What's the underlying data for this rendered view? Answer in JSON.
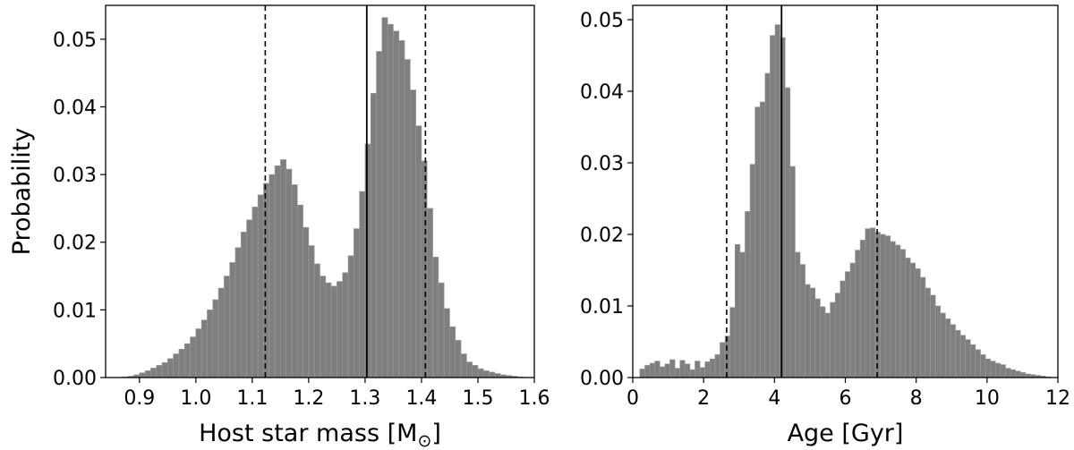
{
  "chart_data": [
    {
      "type": "bar",
      "id": "mass",
      "title": "",
      "xlabel_prefix": "Host star mass [M",
      "xlabel_sub": "⊙",
      "xlabel_suffix": "]",
      "ylabel": "Probability",
      "xlim": [
        0.84,
        1.6
      ],
      "ylim": [
        0,
        0.055
      ],
      "bin_start": 0.85,
      "bin_width": 0.01,
      "xticks": [
        0.9,
        1.0,
        1.1,
        1.2,
        1.3,
        1.4,
        1.5,
        1.6
      ],
      "xtick_labels": [
        "0.9",
        "1.0",
        "1.1",
        "1.2",
        "1.3",
        "1.4",
        "1.5",
        "1.6"
      ],
      "yticks": [
        0.0,
        0.01,
        0.02,
        0.03,
        0.04,
        0.05
      ],
      "ytick_labels": [
        "0.00",
        "0.01",
        "0.02",
        "0.03",
        "0.04",
        "0.05"
      ],
      "values": [
        0.0,
        0.0,
        0.0001,
        0.0002,
        0.0004,
        0.0007,
        0.001,
        0.0014,
        0.0018,
        0.0022,
        0.0028,
        0.0035,
        0.0042,
        0.005,
        0.006,
        0.0072,
        0.0085,
        0.01,
        0.0115,
        0.0132,
        0.015,
        0.017,
        0.0192,
        0.0215,
        0.0233,
        0.0252,
        0.027,
        0.0287,
        0.03,
        0.0313,
        0.0322,
        0.0308,
        0.0285,
        0.0255,
        0.0222,
        0.0195,
        0.0168,
        0.015,
        0.014,
        0.0135,
        0.0142,
        0.0155,
        0.018,
        0.022,
        0.0275,
        0.0345,
        0.042,
        0.0482,
        0.0532,
        0.0522,
        0.0512,
        0.0498,
        0.047,
        0.0425,
        0.0372,
        0.032,
        0.025,
        0.0178,
        0.014,
        0.0102,
        0.0075,
        0.0055,
        0.0035,
        0.0023,
        0.0018,
        0.0013,
        0.001,
        0.0008,
        0.0006,
        0.0004,
        0.0003,
        0.0002,
        0.0001
      ],
      "vlines": [
        {
          "x": 1.123,
          "style": "dashed"
        },
        {
          "x": 1.303,
          "style": "solid"
        },
        {
          "x": 1.407,
          "style": "dashed"
        }
      ]
    },
    {
      "type": "bar",
      "id": "age",
      "title": "",
      "xlabel": "Age [Gyr]",
      "ylabel": "",
      "xlim": [
        0,
        12
      ],
      "ylim": [
        0,
        0.052
      ],
      "bin_start": 0.2,
      "bin_width": 0.1414,
      "xticks": [
        0,
        2,
        4,
        6,
        8,
        10,
        12
      ],
      "xtick_labels": [
        "0",
        "2",
        "4",
        "6",
        "8",
        "10",
        "12"
      ],
      "yticks": [
        0.0,
        0.01,
        0.02,
        0.03,
        0.04,
        0.05
      ],
      "ytick_labels": [
        "0.00",
        "0.01",
        "0.02",
        "0.03",
        "0.04",
        "0.05"
      ],
      "values": [
        0.0012,
        0.0017,
        0.002,
        0.0023,
        0.0015,
        0.0019,
        0.0025,
        0.0013,
        0.0024,
        0.0019,
        0.0011,
        0.0023,
        0.0014,
        0.0022,
        0.0026,
        0.0032,
        0.0049,
        0.0058,
        0.0098,
        0.0186,
        0.0175,
        0.0232,
        0.0298,
        0.0378,
        0.0385,
        0.0425,
        0.0478,
        0.0493,
        0.0475,
        0.0405,
        0.0295,
        0.0175,
        0.0158,
        0.013,
        0.0125,
        0.011,
        0.0099,
        0.009,
        0.0105,
        0.0118,
        0.0135,
        0.0148,
        0.016,
        0.0178,
        0.0192,
        0.0208,
        0.0209,
        0.0203,
        0.02,
        0.0198,
        0.019,
        0.0185,
        0.0179,
        0.0167,
        0.016,
        0.0152,
        0.014,
        0.0125,
        0.0115,
        0.01,
        0.009,
        0.0082,
        0.0074,
        0.0066,
        0.0059,
        0.0053,
        0.0046,
        0.0039,
        0.0032,
        0.0026,
        0.0023,
        0.002,
        0.0018,
        0.0013,
        0.0011,
        0.0009,
        0.0007,
        0.0005,
        0.0004,
        0.0003,
        0.0002,
        0.0001
      ],
      "vlines": [
        {
          "x": 2.65,
          "style": "dashed"
        },
        {
          "x": 4.2,
          "style": "solid"
        },
        {
          "x": 6.9,
          "style": "dashed"
        }
      ]
    }
  ]
}
